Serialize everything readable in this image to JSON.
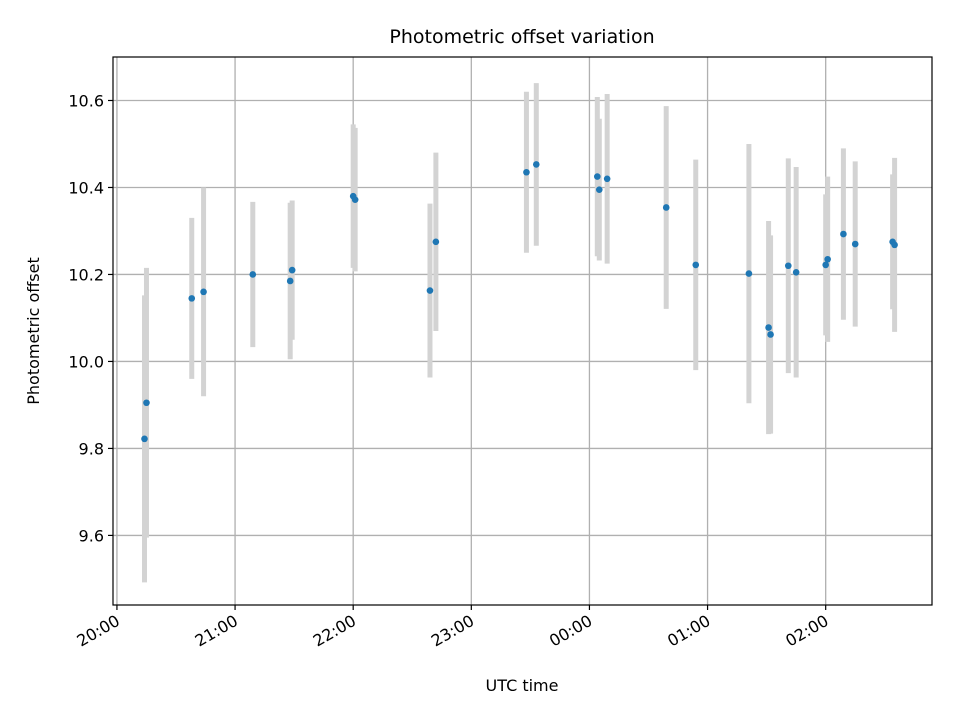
{
  "chart_data": {
    "type": "scatter",
    "title": "Photometric offset variation",
    "xlabel": "UTC time",
    "ylabel": "Photometric offset",
    "grid": true,
    "ylim": [
      9.44,
      10.7
    ],
    "xlim": [
      "19:58",
      "02:54"
    ],
    "x_ticks": [
      "20:00",
      "21:00",
      "22:00",
      "23:00",
      "00:00",
      "01:00",
      "02:00"
    ],
    "y_ticks": [
      9.6,
      9.8,
      10.0,
      10.2,
      10.4,
      10.6
    ],
    "colors": {
      "point": "#1f77b4",
      "errorbar": "#d3d3d3",
      "grid": "#b0b0b0"
    },
    "points": [
      {
        "x": "20:14",
        "y": 9.822,
        "err": 0.33
      },
      {
        "x": "20:15",
        "y": 9.905,
        "err": 0.31
      },
      {
        "x": "20:38",
        "y": 10.145,
        "err": 0.185
      },
      {
        "x": "20:44",
        "y": 10.16,
        "err": 0.24
      },
      {
        "x": "21:09",
        "y": 10.2,
        "err": 0.167
      },
      {
        "x": "21:28",
        "y": 10.185,
        "err": 0.18
      },
      {
        "x": "21:29",
        "y": 10.21,
        "err": 0.16
      },
      {
        "x": "22:00",
        "y": 10.38,
        "err": 0.165
      },
      {
        "x": "22:01",
        "y": 10.372,
        "err": 0.165
      },
      {
        "x": "22:39",
        "y": 10.163,
        "err": 0.2
      },
      {
        "x": "22:42",
        "y": 10.275,
        "err": 0.205
      },
      {
        "x": "23:28",
        "y": 10.435,
        "err": 0.185
      },
      {
        "x": "23:33",
        "y": 10.453,
        "err": 0.187
      },
      {
        "x": "00:04",
        "y": 10.425,
        "err": 0.183
      },
      {
        "x": "00:05",
        "y": 10.395,
        "err": 0.163
      },
      {
        "x": "00:09",
        "y": 10.42,
        "err": 0.195
      },
      {
        "x": "00:39",
        "y": 10.354,
        "err": 0.233
      },
      {
        "x": "00:54",
        "y": 10.222,
        "err": 0.242
      },
      {
        "x": "01:21",
        "y": 10.202,
        "err": 0.298
      },
      {
        "x": "01:31",
        "y": 10.078,
        "err": 0.245
      },
      {
        "x": "01:32",
        "y": 10.062,
        "err": 0.228
      },
      {
        "x": "01:41",
        "y": 10.22,
        "err": 0.247
      },
      {
        "x": "01:45",
        "y": 10.205,
        "err": 0.242
      },
      {
        "x": "02:00",
        "y": 10.222,
        "err": 0.162
      },
      {
        "x": "02:01",
        "y": 10.235,
        "err": 0.19
      },
      {
        "x": "02:09",
        "y": 10.293,
        "err": 0.197
      },
      {
        "x": "02:15",
        "y": 10.27,
        "err": 0.19
      },
      {
        "x": "02:34",
        "y": 10.275,
        "err": 0.155
      },
      {
        "x": "02:35",
        "y": 10.268,
        "err": 0.2
      }
    ]
  }
}
